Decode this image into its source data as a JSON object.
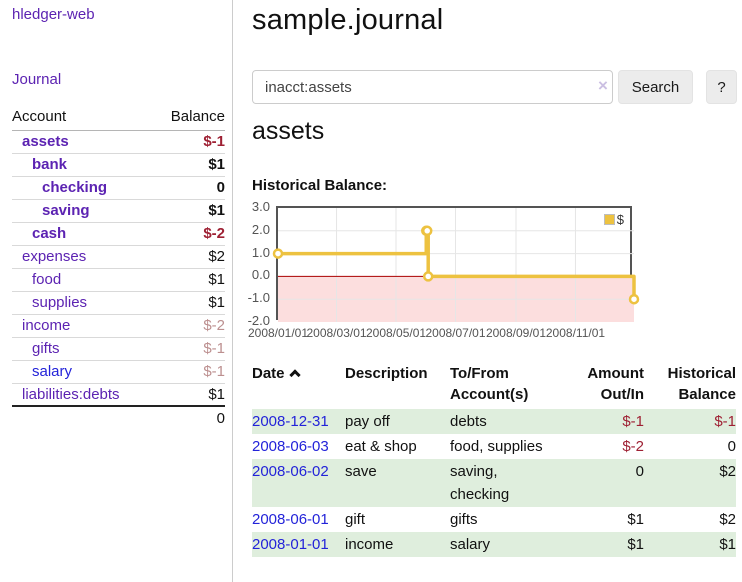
{
  "colors": {
    "purple": "#5c23b2",
    "blue": "#2323d9",
    "negative": "#9e2033",
    "rose": "#bc8f8f",
    "black": "#111111",
    "stripe_green": "#dfeedd",
    "chart_line": "#edc240",
    "chart_negative_fill": "#fcdede",
    "chart_zero_line": "#aa0000",
    "chart_border": "#545454",
    "chart_grid": "#e6e6e6",
    "clear_icon": "#cbbfe2"
  },
  "sidebar": {
    "brand": "hledger-web",
    "journal_link": "Journal",
    "accounts_table": {
      "headers": {
        "account": "Account",
        "balance": "Balance"
      },
      "rows": [
        {
          "name": "assets",
          "indent": 1,
          "bold": true,
          "name_color": "purple",
          "balance": "$-1",
          "balance_color": "negative"
        },
        {
          "name": "bank",
          "indent": 2,
          "bold": true,
          "name_color": "purple",
          "balance": "$1",
          "balance_color": "black"
        },
        {
          "name": "checking",
          "indent": 3,
          "bold": true,
          "name_color": "purple",
          "balance": "0",
          "balance_color": "black"
        },
        {
          "name": "saving",
          "indent": 3,
          "bold": true,
          "name_color": "purple",
          "balance": "$1",
          "balance_color": "black"
        },
        {
          "name": "cash",
          "indent": 2,
          "bold": true,
          "name_color": "purple",
          "balance": "$-2",
          "balance_color": "negative"
        },
        {
          "name": "expenses",
          "indent": 1,
          "bold": false,
          "name_color": "purple",
          "balance": "$2",
          "balance_color": "black"
        },
        {
          "name": "food",
          "indent": 2,
          "bold": false,
          "name_color": "purple",
          "balance": "$1",
          "balance_color": "black"
        },
        {
          "name": "supplies",
          "indent": 2,
          "bold": false,
          "name_color": "purple",
          "balance": "$1",
          "balance_color": "black"
        },
        {
          "name": "income",
          "indent": 1,
          "bold": false,
          "name_color": "purple",
          "balance": "$-2",
          "balance_color": "rose"
        },
        {
          "name": "gifts",
          "indent": 2,
          "bold": false,
          "name_color": "purple",
          "balance": "$-1",
          "balance_color": "rose"
        },
        {
          "name": "salary",
          "indent": 2,
          "bold": false,
          "name_color": "blue",
          "balance": "$-1",
          "balance_color": "rose"
        },
        {
          "name": "liabilities:debts",
          "indent": 1,
          "bold": false,
          "name_color": "purple",
          "balance": "$1",
          "balance_color": "black"
        }
      ],
      "total": "0"
    }
  },
  "header": {
    "title": "sample.journal"
  },
  "search": {
    "value": "inacct:assets",
    "clear_icon": "×",
    "button_label": "Search",
    "help_label": "?"
  },
  "account_view": {
    "title": "assets",
    "chart_label": "Historical Balance:"
  },
  "chart_data": {
    "type": "line",
    "step": true,
    "title": "Historical Balance",
    "series": [
      {
        "name": "$",
        "color": "#edc240",
        "points": [
          {
            "x": "2008-01-01",
            "y": 1
          },
          {
            "x": "2008-06-01",
            "y": 2
          },
          {
            "x": "2008-06-02",
            "y": 2
          },
          {
            "x": "2008-06-03",
            "y": 0
          },
          {
            "x": "2008-12-31",
            "y": -1
          }
        ]
      }
    ],
    "xrange": [
      "2008-01-01",
      "2008-12-31"
    ],
    "ylim": [
      -2,
      3
    ],
    "yticks": [
      3,
      2,
      1,
      0,
      -1,
      -2
    ],
    "ytick_labels": [
      "3.0",
      "2.0",
      "1.0",
      "0.0",
      "-1.0",
      "-2.0"
    ],
    "xtick_dates": [
      "2008-01-01",
      "2008-03-01",
      "2008-05-01",
      "2008-07-01",
      "2008-09-01",
      "2008-11-01"
    ],
    "xtick_labels": [
      "2008/01/01",
      "2008/03/01",
      "2008/05/01",
      "2008/07/01",
      "2008/09/01",
      "2008/11/01"
    ],
    "legend": {
      "label": "$",
      "position": "top-right"
    },
    "grid": true,
    "negative_region_shaded": true
  },
  "register_table": {
    "headers": {
      "date": "Date",
      "description": "Description",
      "accounts": "To/From\nAccount(s)",
      "amount": "Amount\nOut/In",
      "balance": "Historical\nBalance"
    },
    "rows": [
      {
        "date": "2008-12-31",
        "description": "pay off",
        "accounts": "debts",
        "amount": "$-1",
        "amount_neg": true,
        "balance": "$-1",
        "balance_neg": true,
        "shaded": true
      },
      {
        "date": "2008-06-03",
        "description": "eat & shop",
        "accounts": "food, supplies",
        "amount": "$-2",
        "amount_neg": true,
        "balance": "0",
        "balance_neg": false,
        "shaded": false
      },
      {
        "date": "2008-06-02",
        "description": "save",
        "accounts": "saving,\nchecking",
        "amount": "0",
        "amount_neg": false,
        "balance": "$2",
        "balance_neg": false,
        "shaded": true
      },
      {
        "date": "2008-06-01",
        "description": "gift",
        "accounts": "gifts",
        "amount": "$1",
        "amount_neg": false,
        "balance": "$2",
        "balance_neg": false,
        "shaded": false
      },
      {
        "date": "2008-01-01",
        "description": "income",
        "accounts": "salary",
        "amount": "$1",
        "amount_neg": false,
        "balance": "$1",
        "balance_neg": false,
        "shaded": true
      }
    ]
  }
}
